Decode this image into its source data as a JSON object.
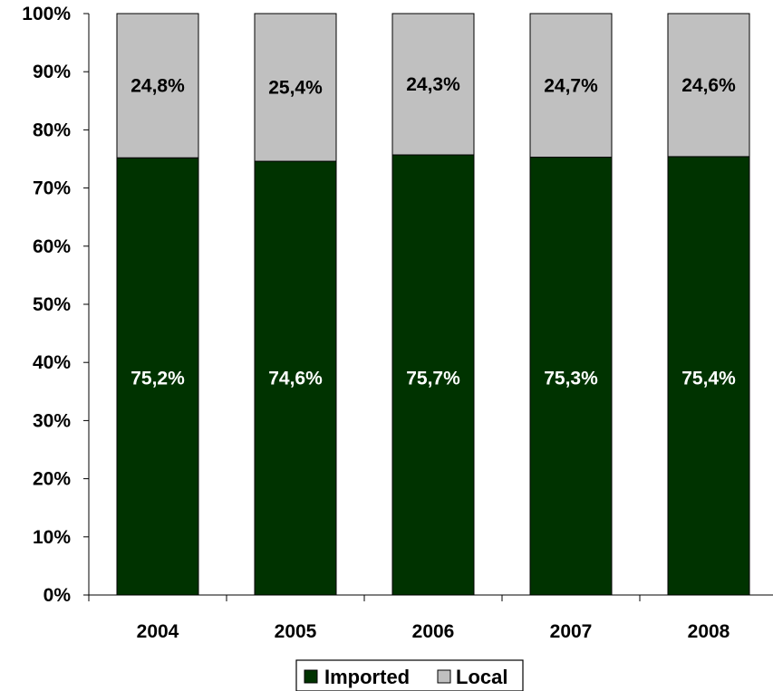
{
  "chart_data": {
    "type": "bar",
    "stacked": "percent",
    "categories": [
      "2004",
      "2005",
      "2006",
      "2007",
      "2008"
    ],
    "series": [
      {
        "name": "Imported",
        "color": "#003300",
        "values": [
          75.2,
          74.6,
          75.7,
          75.3,
          75.4
        ],
        "labels": [
          "75,2%",
          "74,6%",
          "75,7%",
          "75,3%",
          "75,4%"
        ]
      },
      {
        "name": "Local",
        "color": "#c0c0c0",
        "values": [
          24.8,
          25.4,
          24.3,
          24.7,
          24.6
        ],
        "labels": [
          "24,8%",
          "25,4%",
          "24,3%",
          "24,7%",
          "24,6%"
        ]
      }
    ],
    "ylim": [
      0,
      100
    ],
    "yticks": [
      "0%",
      "10%",
      "20%",
      "30%",
      "40%",
      "50%",
      "60%",
      "70%",
      "80%",
      "90%",
      "100%"
    ],
    "grid": false,
    "legend_position": "bottom-center",
    "title": "",
    "xlabel": "",
    "ylabel": ""
  }
}
